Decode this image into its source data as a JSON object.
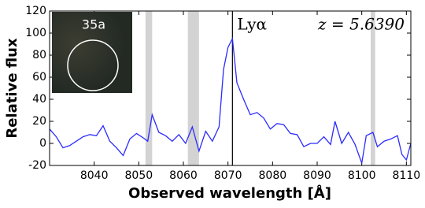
{
  "chart_data": {
    "type": "line",
    "xlabel": "Observed wavelength [Å]",
    "ylabel": "Relative flux",
    "annotations": [
      "Lyα",
      "z = 5.6390"
    ],
    "inset_label": "35a",
    "x": [
      8030,
      8031.5,
      8033,
      8034.5,
      8036,
      8037.5,
      8039,
      8040.5,
      8042,
      8043.5,
      8045,
      8046.5,
      8048,
      8049.5,
      8051,
      8052,
      8053,
      8054.5,
      8056,
      8057.5,
      8059,
      8060.5,
      8062,
      8063.5,
      8065,
      8066.5,
      8068,
      8069,
      8070,
      8071,
      8072,
      8073.5,
      8075,
      8076.5,
      8078,
      8079.5,
      8081,
      8082.5,
      8084,
      8085.5,
      8087,
      8088.5,
      8090,
      8091.5,
      8093,
      8094,
      8095.5,
      8097,
      8098.5,
      8100,
      8101,
      8102.5,
      8103.5,
      8105,
      8106.5,
      8108,
      8109,
      8110,
      8111
    ],
    "series": [
      {
        "color": "#2b2bff",
        "values": [
          13,
          6,
          -4,
          -2,
          2,
          6,
          8,
          7,
          16,
          2,
          -4,
          -11,
          4,
          9,
          5,
          2,
          26,
          10,
          7,
          2,
          8,
          0,
          15,
          -7,
          11,
          2,
          15,
          67,
          87,
          95,
          55,
          40,
          26,
          28,
          23,
          13,
          18,
          17,
          9,
          8,
          -3,
          0,
          0,
          6,
          -1,
          20,
          0,
          10,
          -1,
          -18,
          7,
          10,
          -3,
          2,
          4,
          7,
          -10,
          -15,
          0
        ]
      }
    ],
    "shaded": [
      [
        8051.5,
        8053
      ],
      [
        8061,
        8063.5
      ],
      [
        8102,
        8103
      ]
    ],
    "shade_color": "#d3d3d3",
    "vline": 8071,
    "xlim": [
      8030,
      8111
    ],
    "ylim": [
      -20,
      120
    ],
    "xticks": [
      8040,
      8050,
      8060,
      8070,
      8080,
      8090,
      8100,
      8110
    ],
    "yticks": [
      -20,
      0,
      20,
      40,
      60,
      80,
      100,
      120
    ]
  }
}
